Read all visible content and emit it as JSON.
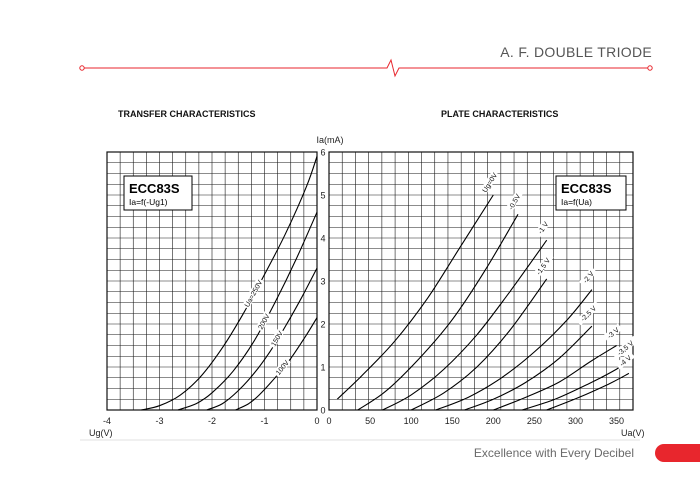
{
  "header": {
    "title": "A. F. DOUBLE TRIODE",
    "accent_color": "#e8262d"
  },
  "footer": {
    "slogan": "Excellence with Every Decibel"
  },
  "chart_data": [
    {
      "type": "line",
      "title": "TRANSFER CHARACTERISTICS",
      "tube": "ECC83S",
      "function": "Ia=f(-Ug1)",
      "xlabel": "Ug(V)",
      "ylabel": "Ia(mA)",
      "xlim": [
        -4,
        0
      ],
      "ylim": [
        0,
        6
      ],
      "xticks": [
        "-4",
        "-3",
        "-2",
        "-1",
        "0"
      ],
      "yticks": [
        "0",
        "1",
        "2",
        "3",
        "4",
        "5",
        "6"
      ],
      "grid": true,
      "series": [
        {
          "name": "Ua=250V",
          "x": [
            -3.35,
            -3.0,
            -2.6,
            -2.2,
            -1.8,
            -1.4,
            -1.0,
            -0.6,
            -0.2,
            0
          ],
          "y": [
            0,
            0.1,
            0.35,
            0.8,
            1.45,
            2.25,
            3.15,
            4.1,
            5.2,
            5.9
          ]
        },
        {
          "name": "200V",
          "x": [
            -2.65,
            -2.3,
            -2.0,
            -1.6,
            -1.2,
            -0.8,
            -0.4,
            0
          ],
          "y": [
            0,
            0.15,
            0.4,
            0.9,
            1.6,
            2.5,
            3.5,
            4.6
          ]
        },
        {
          "name": "150V",
          "x": [
            -2.1,
            -1.8,
            -1.5,
            -1.2,
            -0.9,
            -0.6,
            -0.3,
            0
          ],
          "y": [
            0,
            0.15,
            0.45,
            0.85,
            1.35,
            1.95,
            2.6,
            3.3
          ]
        },
        {
          "name": "100V",
          "x": [
            -1.55,
            -1.3,
            -1.1,
            -0.8,
            -0.5,
            -0.2,
            0
          ],
          "y": [
            0,
            0.15,
            0.35,
            0.75,
            1.2,
            1.75,
            2.15
          ]
        }
      ]
    },
    {
      "type": "line",
      "title": "PLATE CHARACTERISTICS",
      "tube": "ECC83S",
      "function": "Ia=f(Ua)",
      "xlabel": "Ua(V)",
      "xlim": [
        0,
        370
      ],
      "ylim": [
        0,
        6
      ],
      "xticks": [
        "0",
        "50",
        "100",
        "150",
        "200",
        "250",
        "300",
        "350"
      ],
      "grid": true,
      "series": [
        {
          "name": "Ug=0V",
          "x": [
            10,
            40,
            80,
            120,
            160,
            200
          ],
          "y": [
            0.25,
            0.8,
            1.6,
            2.6,
            3.8,
            5.0
          ]
        },
        {
          "name": "-0.5V",
          "x": [
            35,
            70,
            110,
            150,
            190,
            230
          ],
          "y": [
            0,
            0.45,
            1.2,
            2.1,
            3.25,
            4.55
          ]
        },
        {
          "name": "-1 V",
          "x": [
            65,
            100,
            140,
            180,
            220,
            265
          ],
          "y": [
            0,
            0.35,
            0.95,
            1.75,
            2.75,
            3.95
          ]
        },
        {
          "name": "-1,5 V",
          "x": [
            100,
            140,
            180,
            220,
            265
          ],
          "y": [
            0,
            0.4,
            1.0,
            1.85,
            3.05
          ]
        },
        {
          "name": "-2 V",
          "x": [
            130,
            170,
            210,
            250,
            290,
            320
          ],
          "y": [
            0,
            0.3,
            0.75,
            1.35,
            2.1,
            2.8
          ]
        },
        {
          "name": "-2,5 V",
          "x": [
            165,
            200,
            240,
            280,
            320
          ],
          "y": [
            0,
            0.25,
            0.65,
            1.2,
            1.95
          ]
        },
        {
          "name": "-3 V",
          "x": [
            200,
            240,
            280,
            320,
            350
          ],
          "y": [
            0,
            0.3,
            0.65,
            1.15,
            1.5
          ]
        },
        {
          "name": "-3,5 V",
          "x": [
            235,
            275,
            315,
            350,
            365
          ],
          "y": [
            0,
            0.25,
            0.6,
            0.95,
            1.15
          ]
        },
        {
          "name": "-4 V",
          "x": [
            265,
            305,
            340,
            365
          ],
          "y": [
            0,
            0.3,
            0.6,
            0.85
          ]
        }
      ]
    }
  ]
}
